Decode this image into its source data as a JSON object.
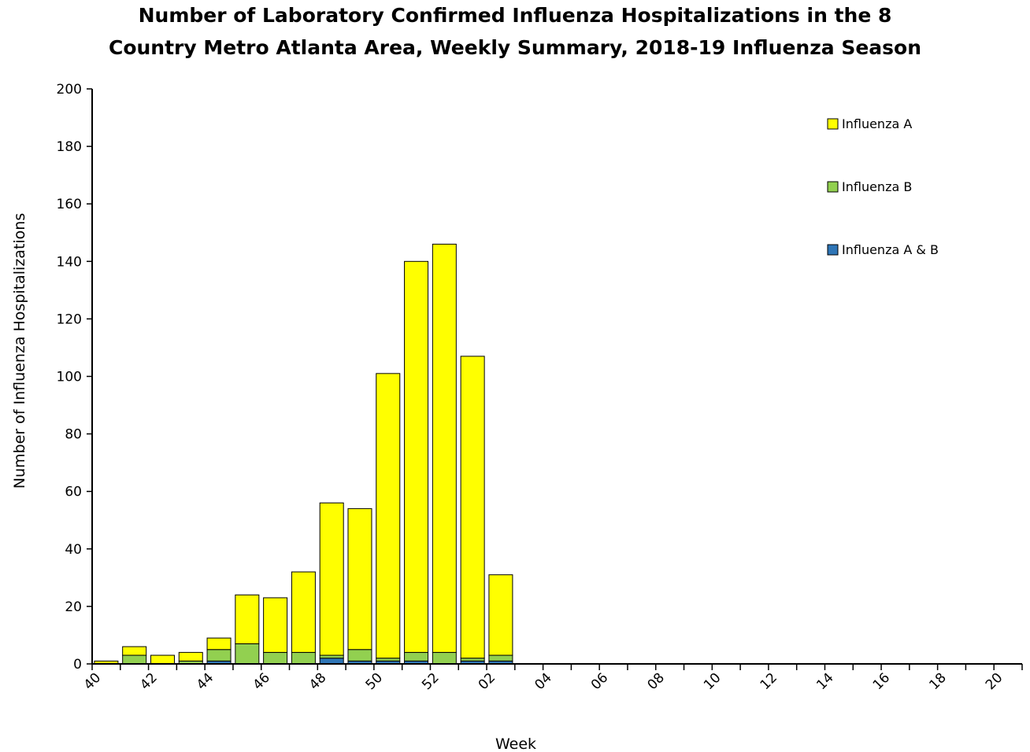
{
  "chart_data": {
    "type": "bar",
    "stacked": true,
    "title": "Number of Laboratory Confirmed Influenza Hospitalizations in the 8 Country Metro Atlanta Area, Weekly Summary, 2018-19 Influenza Season",
    "title_lines": [
      "Number of Laboratory Confirmed Influenza Hospitalizations in the 8",
      "Country Metro Atlanta Area, Weekly Summary, 2018-19 Influenza Season"
    ],
    "xlabel": "Week",
    "ylabel": "Number of Influenza Hospitalizations",
    "ylim": [
      0,
      200
    ],
    "y_ticks": [
      "0",
      "20",
      "40",
      "60",
      "80",
      "100",
      "120",
      "140",
      "160",
      "180",
      "200"
    ],
    "categories": [
      "40",
      "41",
      "42",
      "43",
      "44",
      "45",
      "46",
      "47",
      "48",
      "49",
      "50",
      "51",
      "52",
      "01",
      "02",
      "03",
      "04",
      "05",
      "06",
      "07",
      "08",
      "09",
      "10",
      "11",
      "12",
      "13",
      "14",
      "15",
      "16",
      "17",
      "18",
      "19",
      "20"
    ],
    "x_tick_labels": [
      "40",
      "42",
      "44",
      "46",
      "48",
      "50",
      "52",
      "02",
      "04",
      "06",
      "08",
      "10",
      "12",
      "14",
      "16",
      "18",
      "20"
    ],
    "legend_position": "top-right",
    "grid": false,
    "series": [
      {
        "name": "Influenza A & B",
        "color": "#2e75b6",
        "values": [
          0,
          0,
          0,
          0,
          1,
          0,
          0,
          0,
          2,
          1,
          1,
          1,
          0,
          1,
          1,
          0,
          0,
          0,
          0,
          0,
          0,
          0,
          0,
          0,
          0,
          0,
          0,
          0,
          0,
          0,
          0,
          0,
          0
        ]
      },
      {
        "name": "Influenza B",
        "color": "#92d050",
        "values": [
          0,
          3,
          0,
          1,
          4,
          7,
          4,
          4,
          1,
          4,
          1,
          3,
          4,
          1,
          2,
          0,
          0,
          0,
          0,
          0,
          0,
          0,
          0,
          0,
          0,
          0,
          0,
          0,
          0,
          0,
          0,
          0,
          0
        ]
      },
      {
        "name": "Influenza A",
        "color": "#ffff00",
        "values": [
          1,
          3,
          3,
          3,
          4,
          17,
          19,
          28,
          53,
          49,
          99,
          136,
          142,
          105,
          28,
          0,
          0,
          0,
          0,
          0,
          0,
          0,
          0,
          0,
          0,
          0,
          0,
          0,
          0,
          0,
          0,
          0,
          0
        ]
      }
    ],
    "legend_order": [
      "Influenza A",
      "Influenza B",
      "Influenza A & B"
    ]
  }
}
